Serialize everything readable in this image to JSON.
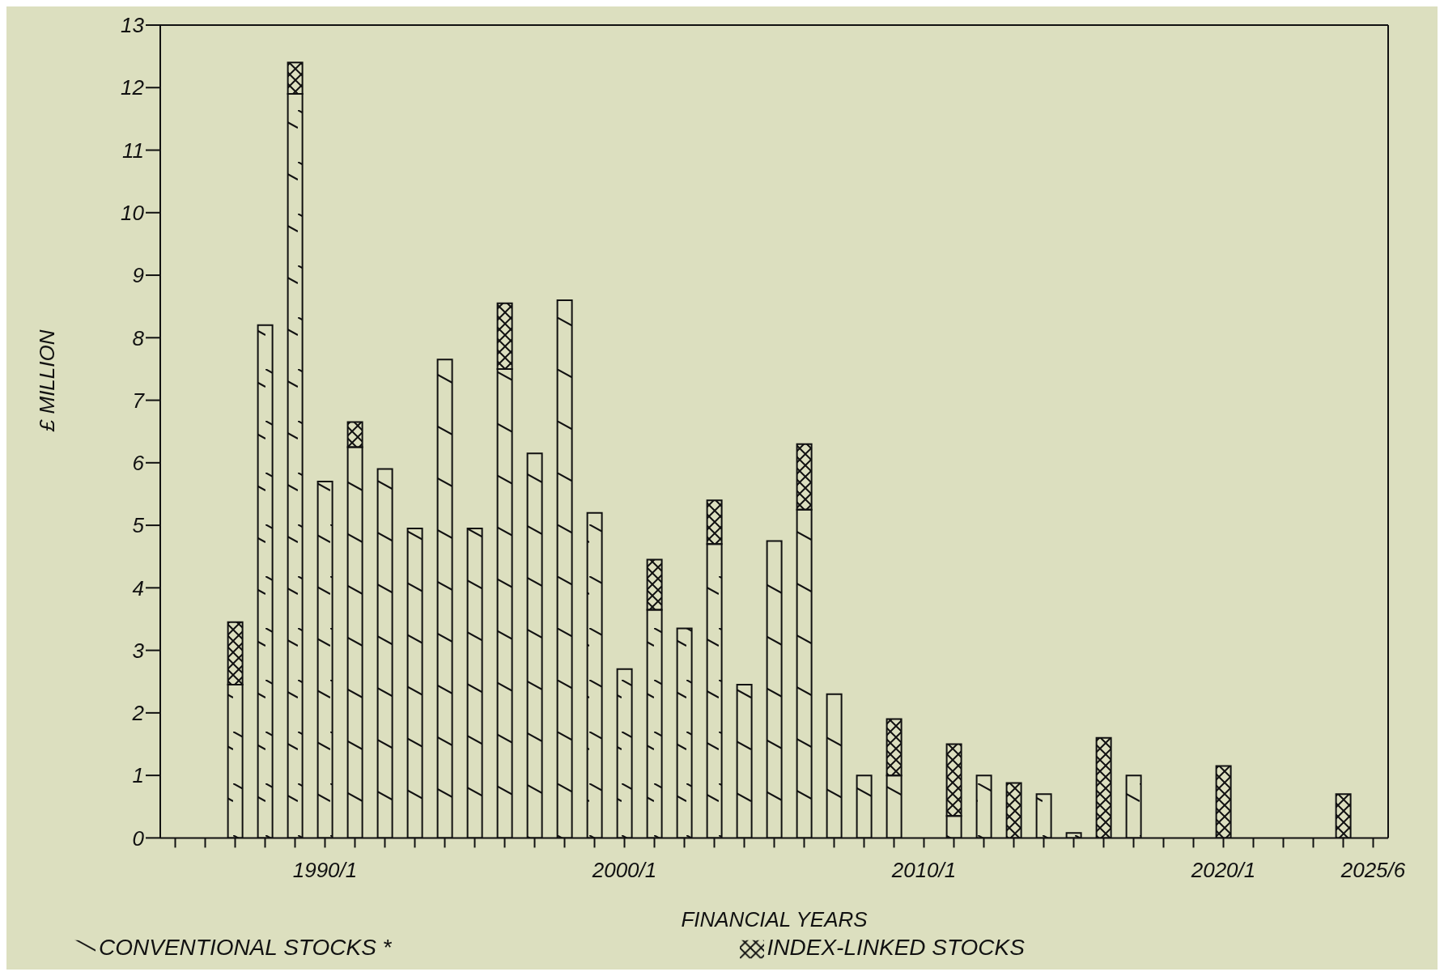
{
  "chart_data": {
    "type": "bar",
    "stacked": true,
    "xlabel": "FINANCIAL YEARS",
    "ylabel": "£ MILLION",
    "categories": [
      null,
      null,
      null,
      null,
      null,
      "1990/1",
      null,
      null,
      null,
      null,
      null,
      null,
      null,
      null,
      null,
      "2000/1",
      null,
      null,
      null,
      null,
      null,
      null,
      null,
      null,
      null,
      "2010/1",
      null,
      null,
      null,
      null,
      null,
      null,
      null,
      null,
      null,
      "2020/1",
      null,
      null,
      null,
      null,
      "2025/6"
    ],
    "series": [
      {
        "name": "CONVENTIONAL STOCKS *",
        "color": "#111111",
        "values": [
          null,
          null,
          2.45,
          8.2,
          11.9,
          5.7,
          6.25,
          5.9,
          4.95,
          7.65,
          4.95,
          7.5,
          6.15,
          8.6,
          5.2,
          2.7,
          3.65,
          3.35,
          4.7,
          2.45,
          4.75,
          5.25,
          2.3,
          1.0,
          1.0,
          null,
          0.35,
          1.0,
          null,
          0.7,
          0.08,
          null,
          1.0,
          null,
          null,
          null,
          null,
          null,
          null,
          null,
          null
        ]
      },
      {
        "name": "INDEX-LINKED STOCKS",
        "color": "#111111",
        "values": [
          null,
          null,
          1.0,
          null,
          0.5,
          null,
          0.4,
          null,
          null,
          null,
          null,
          1.05,
          null,
          null,
          null,
          null,
          0.8,
          null,
          0.7,
          null,
          null,
          1.05,
          null,
          null,
          0.9,
          null,
          1.15,
          null,
          0.88,
          null,
          null,
          1.6,
          null,
          null,
          null,
          1.15,
          null,
          null,
          null,
          0.7,
          null
        ]
      }
    ],
    "ylim": [
      0,
      13
    ],
    "yticks": [
      0,
      1,
      2,
      3,
      4,
      5,
      6,
      7,
      8,
      9,
      10,
      11,
      12,
      13
    ],
    "legend": "bottom"
  }
}
